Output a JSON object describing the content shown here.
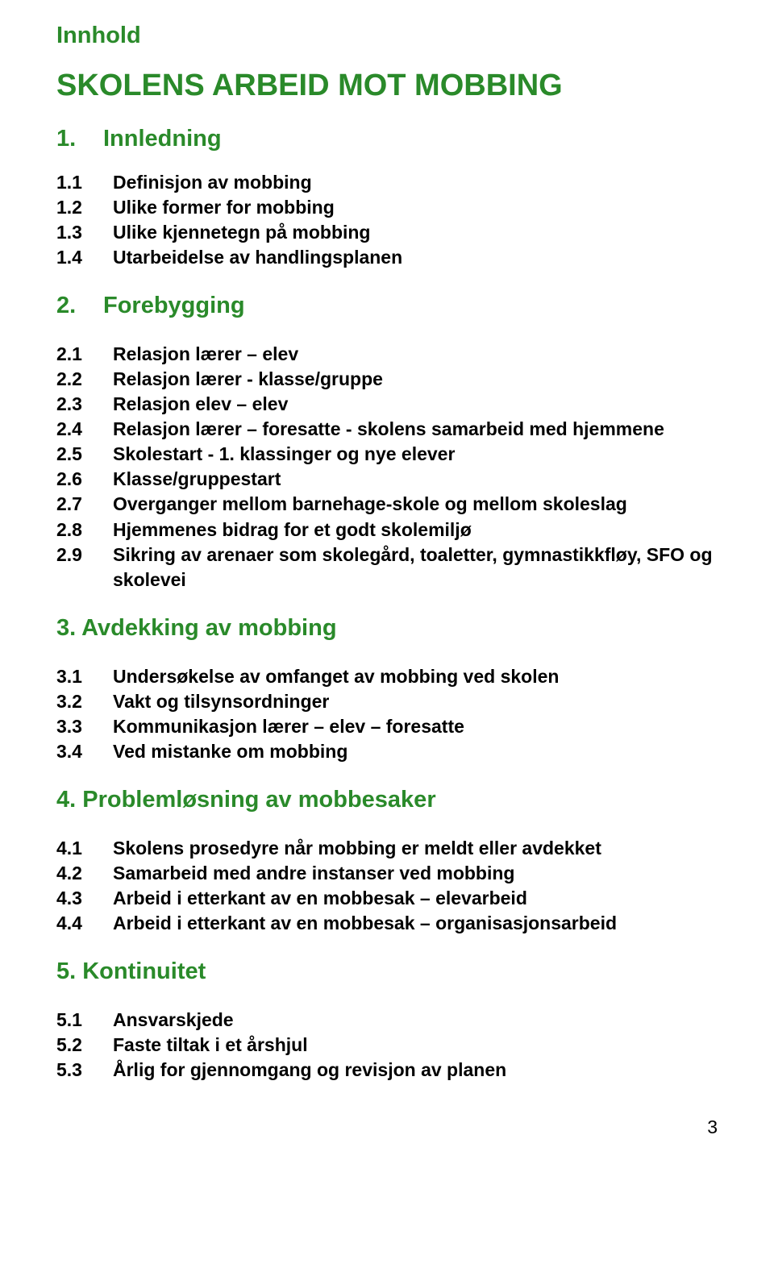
{
  "colors": {
    "heading": "#2a8a2a",
    "text": "#000000",
    "background": "#ffffff"
  },
  "typography": {
    "title_small_fontsize": 29,
    "title_large_fontsize": 38,
    "section_heading_fontsize": 29,
    "toc_item_fontsize": 23,
    "font_family": "Arial, Helvetica, sans-serif",
    "font_weight": "bold"
  },
  "page_title_small": "Innhold",
  "page_title_large": "SKOLENS ARBEID MOT MOBBING",
  "sections": [
    {
      "num": "1.",
      "title": "Innledning",
      "items": [
        {
          "num": "1.1",
          "label": "Definisjon av mobbing"
        },
        {
          "num": "1.2",
          "label": "Ulike former for mobbing"
        },
        {
          "num": "1.3",
          "label": "Ulike kjennetegn på mobbing"
        },
        {
          "num": "1.4",
          "label": "Utarbeidelse av handlingsplanen"
        }
      ]
    },
    {
      "num": "2.",
      "title": "Forebygging",
      "items": [
        {
          "num": "2.1",
          "label": "Relasjon lærer – elev"
        },
        {
          "num": "2.2",
          "label": "Relasjon lærer - klasse/gruppe"
        },
        {
          "num": "2.3",
          "label": "Relasjon elev – elev"
        },
        {
          "num": "2.4",
          "label": "Relasjon lærer – foresatte - skolens samarbeid med hjemmene"
        },
        {
          "num": "2.5",
          "label": "Skolestart - 1. klassinger og nye elever"
        },
        {
          "num": "2.6",
          "label": "Klasse/gruppestart"
        },
        {
          "num": "2.7",
          "label": "Overganger mellom barnehage-skole og mellom skoleslag"
        },
        {
          "num": "2.8",
          "label": "Hjemmenes bidrag for et godt skolemiljø"
        },
        {
          "num": "2.9",
          "label": "Sikring av arenaer som skolegård, toaletter, gymnastikkfløy, SFO og skolevei"
        }
      ]
    },
    {
      "num": "3.",
      "title": "Avdekking av mobbing",
      "no_num_span": true,
      "items": [
        {
          "num": "3.1",
          "label": "Undersøkelse av omfanget av mobbing ved skolen"
        },
        {
          "num": "3.2",
          "label": "Vakt og tilsynsordninger"
        },
        {
          "num": "3.3",
          "label": "Kommunikasjon lærer – elev – foresatte"
        },
        {
          "num": "3.4",
          "label": "Ved mistanke om mobbing"
        }
      ]
    },
    {
      "num": "4.",
      "title": "Problemløsning av mobbesaker",
      "no_num_span": true,
      "items": [
        {
          "num": "4.1",
          "label": "Skolens prosedyre når mobbing er meldt eller avdekket"
        },
        {
          "num": "4.2",
          "label": "Samarbeid med andre instanser ved mobbing"
        },
        {
          "num": "4.3",
          "label": "Arbeid i etterkant av en mobbesak – elevarbeid"
        },
        {
          "num": "4.4",
          "label": "Arbeid i etterkant av en mobbesak – organisasjonsarbeid"
        }
      ]
    },
    {
      "num": "5.",
      "title": "Kontinuitet",
      "no_num_span": true,
      "items": [
        {
          "num": "5.1",
          "label": "Ansvarskjede"
        },
        {
          "num": "5.2",
          "label": "Faste tiltak i et årshjul"
        },
        {
          "num": "5.3",
          "label": "Årlig for gjennomgang og revisjon av planen"
        }
      ]
    }
  ],
  "page_number": "3"
}
